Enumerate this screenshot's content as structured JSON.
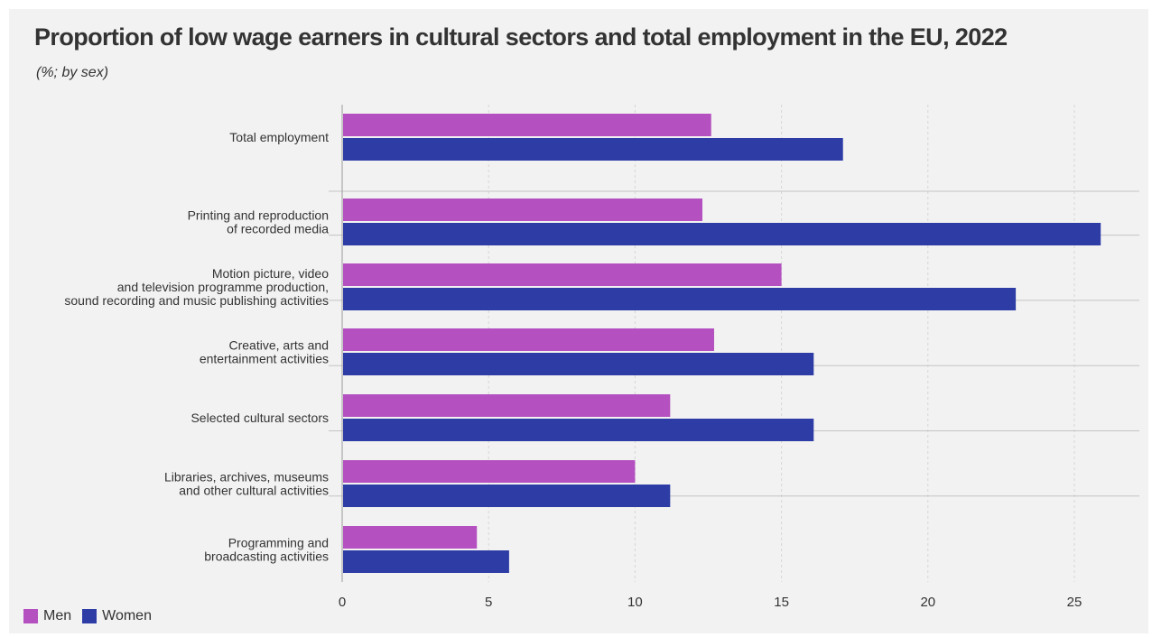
{
  "title": "Proportion of low wage earners in cultural sectors and total employment in the EU, 2022",
  "subtitle": "(%; by sex)",
  "legend": [
    {
      "label": "Men",
      "color": "#b550c0"
    },
    {
      "label": "Women",
      "color": "#2e3da6"
    }
  ],
  "chart_data": {
    "type": "bar",
    "orientation": "horizontal",
    "title": "Proportion of low wage earners in cultural sectors and total employment in the EU, 2022",
    "subtitle": "(%; by sex)",
    "categories": [
      [
        "Total employment"
      ],
      [
        "Printing and reproduction",
        "of recorded media"
      ],
      [
        "Motion picture, video",
        "and television programme production,",
        "sound recording and music publishing activities"
      ],
      [
        "Creative, arts and",
        "entertainment activities"
      ],
      [
        "Selected cultural sectors"
      ],
      [
        "Libraries, archives, museums",
        "and other cultural activities"
      ],
      [
        "Programming and",
        "broadcasting activities"
      ]
    ],
    "series": [
      {
        "name": "Men",
        "color": "#b550c0",
        "values": [
          12.6,
          12.3,
          15.0,
          12.7,
          11.2,
          10.0,
          4.6
        ]
      },
      {
        "name": "Women",
        "color": "#2e3da6",
        "values": [
          17.1,
          25.9,
          23.0,
          16.1,
          16.1,
          11.2,
          5.7
        ]
      }
    ],
    "xticks": [
      0,
      5,
      10,
      15,
      20,
      25
    ],
    "xlim": [
      0,
      27
    ],
    "grid": true,
    "legend_position": "bottom-left"
  }
}
